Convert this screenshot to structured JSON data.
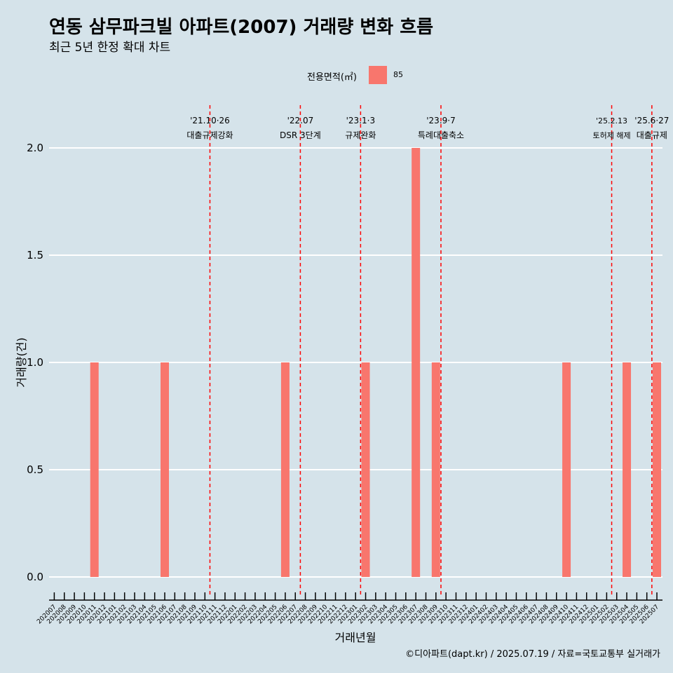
{
  "chart_data": {
    "type": "bar",
    "title": "연동 삼무파크빌 아파트(2007) 거래량 변화 흐름",
    "subtitle": "최근 5년 한정 확대 차트",
    "xlabel": "거래년월",
    "ylabel": "거래량(건)",
    "ylim": [
      0,
      2
    ],
    "yticks": [
      "0.0",
      "0.5",
      "1.0",
      "1.5",
      "2.0"
    ],
    "legend": {
      "title": "전용면적(㎡)",
      "position": "top",
      "entries": [
        "85"
      ]
    },
    "categories": [
      "202007",
      "202008",
      "202009",
      "202010",
      "202011",
      "202012",
      "202101",
      "202102",
      "202103",
      "202104",
      "202105",
      "202106",
      "202107",
      "202108",
      "202109",
      "202110",
      "202111",
      "202112",
      "202201",
      "202202",
      "202203",
      "202204",
      "202205",
      "202206",
      "202207",
      "202208",
      "202209",
      "202210",
      "202211",
      "202212",
      "202301",
      "202302",
      "202303",
      "202304",
      "202305",
      "202306",
      "202307",
      "202308",
      "202309",
      "202310",
      "202311",
      "202312",
      "202401",
      "202402",
      "202403",
      "202404",
      "202405",
      "202406",
      "202407",
      "202408",
      "202409",
      "202410",
      "202411",
      "202412",
      "202501",
      "202502",
      "202503",
      "202504",
      "202505",
      "202506",
      "202507"
    ],
    "series": [
      {
        "name": "85",
        "values": [
          0,
          0,
          0,
          0,
          1,
          0,
          0,
          0,
          0,
          0,
          0,
          1,
          0,
          0,
          0,
          0,
          0,
          0,
          0,
          0,
          0,
          0,
          0,
          1,
          0,
          0,
          0,
          0,
          0,
          0,
          0,
          1,
          0,
          0,
          0,
          0,
          2,
          0,
          1,
          0,
          0,
          0,
          0,
          0,
          0,
          0,
          0,
          0,
          0,
          0,
          0,
          1,
          0,
          0,
          0,
          0,
          0,
          1,
          0,
          0,
          1
        ]
      }
    ],
    "bar_color": "#f8766d",
    "background": "#d5e3ea",
    "grid": "major-y",
    "annotations": [
      {
        "category": "202110",
        "line1": "'21.10·26",
        "line2": "대출규제강화"
      },
      {
        "category": "202207",
        "line1": "'22.07",
        "line2": "DSR 3단계"
      },
      {
        "category": "202301",
        "line1": "'23.1·3",
        "line2": "규제완화"
      },
      {
        "category": "202309",
        "line1": "'23.9·7",
        "line2": "특례대출축소"
      },
      {
        "category": "202502",
        "line1": "'25.2.13",
        "line2": "토허제 해제"
      },
      {
        "category": "202506",
        "line1": "'25.6·27",
        "line2": "대출규제"
      }
    ],
    "annotation_color": "#ff0000"
  },
  "caption": "©디아파트(dapt.kr) / 2025.07.19 / 자료=국토교통부 실거래가"
}
